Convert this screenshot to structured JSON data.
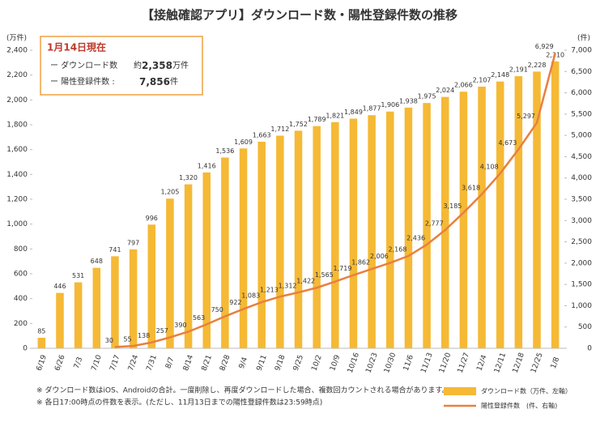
{
  "chart_data": {
    "type": "bar_line",
    "title": "【接触確認アプリ】ダウンロード数・陽性登録件数の推移",
    "y_label": "(万件)",
    "y2_label": "(件)",
    "categories": [
      "6/19",
      "6/26",
      "7/3",
      "7/10",
      "7/17",
      "7/24",
      "7/31",
      "8/7",
      "8/14",
      "8/21",
      "8/28",
      "9/4",
      "9/11",
      "9/18",
      "9/25",
      "10/2",
      "10/9",
      "10/16",
      "10/23",
      "10/30",
      "11/6",
      "11/13",
      "11/20",
      "11/27",
      "12/4",
      "12/11",
      "12/18",
      "12/25",
      "1/8"
    ],
    "series": [
      {
        "name": "ダウンロード数（万件、左軸）",
        "type": "bar",
        "color": "#f5b935",
        "values": [
          85,
          446,
          531,
          648,
          741,
          797,
          996,
          1205,
          1320,
          1416,
          1536,
          1609,
          1663,
          1712,
          1752,
          1789,
          1821,
          1849,
          1877,
          1906,
          1938,
          1975,
          2024,
          2066,
          2107,
          2148,
          2191,
          2228,
          2310
        ],
        "value_labels": [
          "85",
          "446",
          "531",
          "648",
          "741",
          "797",
          "996",
          "1,205",
          "1,320",
          "1,416",
          "1,536",
          "1,609",
          "1,663",
          "1,712",
          "1,752",
          "1,789",
          "1,821",
          "1,849",
          "1,877",
          "1,906",
          "1,938",
          "1,975",
          "2,024",
          "2,066",
          "2,107",
          "2,148",
          "2,191",
          "2,228",
          "2,310"
        ]
      },
      {
        "name": "陽性登録件数　(件、右軸)",
        "type": "line",
        "axis": "y2",
        "color": "#e8803f",
        "values": [
          null,
          null,
          null,
          null,
          30,
          55,
          138,
          257,
          390,
          563,
          750,
          922,
          1083,
          1213,
          1312,
          1422,
          1565,
          1719,
          1862,
          2006,
          2168,
          2436,
          2777,
          3185,
          3618,
          4108,
          4673,
          5297,
          6929
        ],
        "value_labels": [
          null,
          null,
          null,
          null,
          "30",
          "55",
          "138",
          "257",
          "390",
          "563",
          "750",
          "922",
          "1,083",
          "1,213",
          "1,312",
          "1,422",
          "1,565",
          "1,719",
          "1,862",
          "2,006",
          "2,168",
          "2,436",
          "2,777",
          "3,185",
          "3,618",
          "4,108",
          "4,673",
          "5,297",
          "6,929"
        ]
      }
    ],
    "ylim": [
      0,
      2400
    ],
    "yticks": [
      0,
      200,
      400,
      600,
      800,
      {
        "value": 1000,
        "label": "1,000"
      },
      {
        "value": 1200,
        "label": "1,200"
      },
      {
        "value": 1400,
        "label": "1,400"
      },
      {
        "value": 1600,
        "label": "1,600"
      },
      {
        "value": 1800,
        "label": "1,800"
      },
      {
        "value": 2000,
        "label": "2,000"
      },
      {
        "value": 2200,
        "label": "2,200"
      },
      {
        "value": 2400,
        "label": "2,400"
      }
    ],
    "y2lim": [
      0,
      7000
    ],
    "y2ticks": [
      0,
      500,
      {
        "value": 1000,
        "label": "1,000"
      },
      {
        "value": 1500,
        "label": "1,500"
      },
      {
        "value": 2000,
        "label": "2,000"
      },
      {
        "value": 2500,
        "label": "2,500"
      },
      {
        "value": 3000,
        "label": "3,000"
      },
      {
        "value": 3500,
        "label": "3,500"
      },
      {
        "value": 4000,
        "label": "4,000"
      },
      {
        "value": 4500,
        "label": "4,500"
      },
      {
        "value": 5000,
        "label": "5,000"
      },
      {
        "value": 5500,
        "label": "5,500"
      },
      {
        "value": 6000,
        "label": "6,000"
      },
      {
        "value": 6500,
        "label": "6,500"
      },
      {
        "value": 7000,
        "label": "7,000"
      }
    ],
    "grid": false
  },
  "info": {
    "date": "1月14日現在",
    "rows": [
      {
        "label": "ー ダウンロード数",
        "prefix": "約",
        "value": "2,358",
        "unit": "万件"
      },
      {
        "label": "ー 陽性登録件数 :",
        "value": "7,856",
        "unit": "件"
      }
    ]
  },
  "notes": [
    "※ ダウンロード数はiOS、Androidの合計。一度削除し、再度ダウンロードした場合、複数回カウントされる場合があります。",
    "※ 各日17:00時点の件数を表示。(ただし、11月13日までの陽性登録件数は23:59時点)"
  ]
}
